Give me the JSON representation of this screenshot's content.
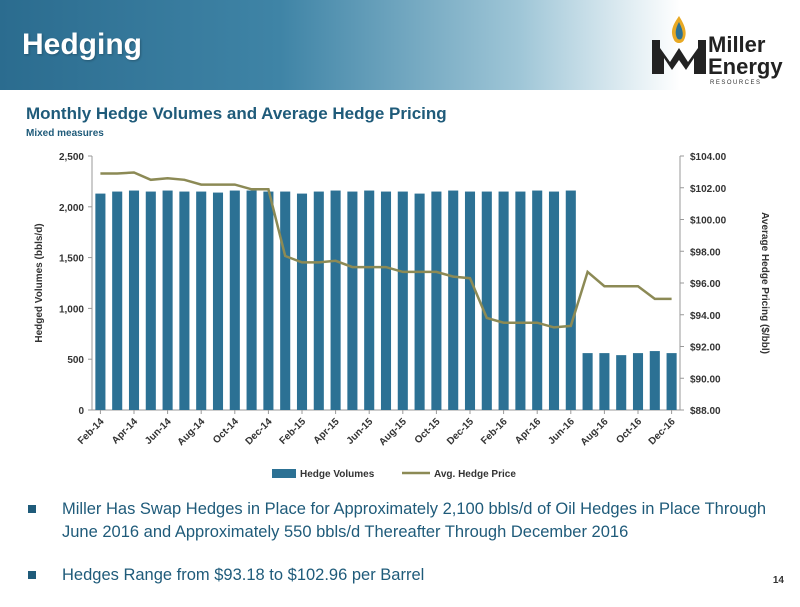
{
  "slide": {
    "title": "Hedging",
    "page_number": "14"
  },
  "logo": {
    "line1": "Miller",
    "line2": "Energy",
    "sub": "RESOURCES"
  },
  "colors": {
    "bar": "#2c7194",
    "line": "#8c8a55",
    "title": "#1f5b7a"
  },
  "chart_data": {
    "type": "bar",
    "title": "Monthly Hedge Volumes and Average Hedge Pricing",
    "subtitle": "Mixed measures",
    "ylabel": "Hedged Volumes (bbls/d)",
    "y2label": "Average Hedge Pricing ($/bbl)",
    "ylim": [
      0,
      2500
    ],
    "y2lim": [
      88,
      104
    ],
    "y_ticks": [
      "0",
      "500",
      "1,000",
      "1,500",
      "2,000",
      "2,500"
    ],
    "y2_ticks": [
      "$88.00",
      "$90.00",
      "$92.00",
      "$94.00",
      "$96.00",
      "$98.00",
      "$100.00",
      "$102.00",
      "$104.00"
    ],
    "categories": [
      "Feb-14",
      "Mar-14",
      "Apr-14",
      "May-14",
      "Jun-14",
      "Jul-14",
      "Aug-14",
      "Sep-14",
      "Oct-14",
      "Nov-14",
      "Dec-14",
      "Jan-15",
      "Feb-15",
      "Mar-15",
      "Apr-15",
      "May-15",
      "Jun-15",
      "Jul-15",
      "Aug-15",
      "Sep-15",
      "Oct-15",
      "Nov-15",
      "Dec-15",
      "Jan-16",
      "Feb-16",
      "Mar-16",
      "Apr-16",
      "May-16",
      "Jun-16",
      "Jul-16",
      "Aug-16",
      "Sep-16",
      "Oct-16",
      "Nov-16",
      "Dec-16"
    ],
    "x_tick_labels": [
      "Feb-14",
      "Apr-14",
      "Jun-14",
      "Aug-14",
      "Oct-14",
      "Dec-14",
      "Feb-15",
      "Apr-15",
      "Jun-15",
      "Aug-15",
      "Oct-15",
      "Dec-15",
      "Feb-16",
      "Apr-16",
      "Jun-16",
      "Aug-16",
      "Oct-16",
      "Dec-16"
    ],
    "series": [
      {
        "name": "Hedge Volumes",
        "type": "bar",
        "axis": "left",
        "values": [
          2130,
          2150,
          2160,
          2150,
          2160,
          2150,
          2150,
          2140,
          2160,
          2160,
          2150,
          2150,
          2130,
          2150,
          2160,
          2150,
          2160,
          2150,
          2150,
          2130,
          2150,
          2160,
          2150,
          2150,
          2150,
          2150,
          2160,
          2150,
          2160,
          560,
          560,
          540,
          560,
          580,
          560
        ]
      },
      {
        "name": "Avg. Hedge Price",
        "type": "line",
        "axis": "right",
        "values": [
          102.9,
          102.9,
          102.96,
          102.5,
          102.6,
          102.5,
          102.2,
          102.2,
          102.2,
          101.9,
          101.9,
          97.7,
          97.3,
          97.3,
          97.4,
          97.0,
          97.0,
          97.0,
          96.7,
          96.7,
          96.7,
          96.4,
          96.3,
          93.8,
          93.5,
          93.5,
          93.5,
          93.2,
          93.3,
          96.7,
          95.8,
          95.8,
          95.8,
          95.0,
          95.0
        ]
      }
    ],
    "legend_position": "bottom",
    "grid": false
  },
  "bullets": [
    "Miller Has Swap Hedges in Place for Approximately 2,100 bbls/d of Oil Hedges in Place Through June 2016 and Approximately 550 bbls/d Thereafter Through December 2016",
    "Hedges Range from $93.18 to $102.96 per Barrel"
  ]
}
